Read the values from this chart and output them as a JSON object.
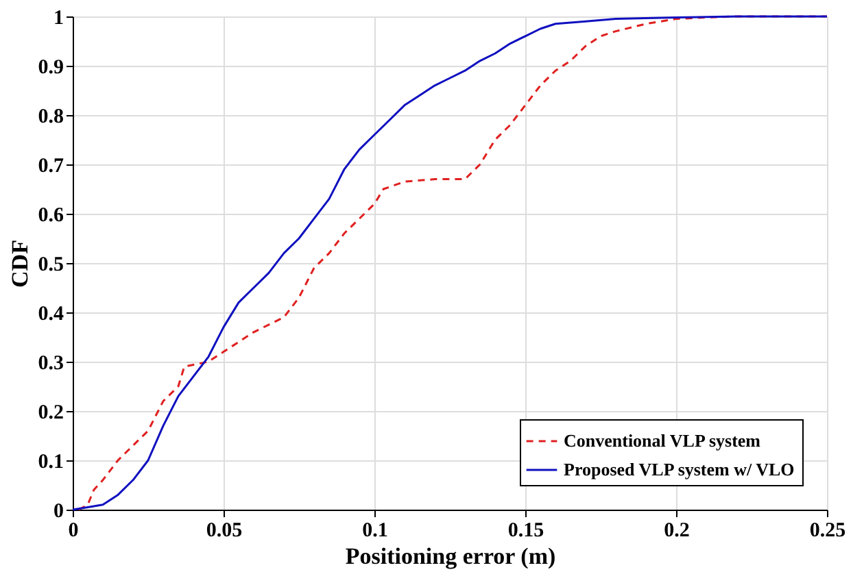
{
  "chart_data": {
    "type": "line",
    "xlabel": "Positioning error (m)",
    "ylabel": "CDF",
    "xlim": [
      0,
      0.25
    ],
    "xticks": [
      0,
      0.05,
      0.1,
      0.15,
      0.2,
      0.25
    ],
    "ylim": [
      0,
      1
    ],
    "yticks": [
      0,
      0.1,
      0.2,
      0.3,
      0.4,
      0.5,
      0.6,
      0.7,
      0.8,
      0.9,
      1
    ],
    "grid": true,
    "legend": "bottom right",
    "marker": "none",
    "series": [
      {
        "name": "Conventional VLP system",
        "color": "#e02020",
        "line_style": "dashed",
        "x": [
          0.002,
          0.005,
          0.007,
          0.01,
          0.015,
          0.02,
          0.025,
          0.03,
          0.035,
          0.037,
          0.045,
          0.05,
          0.06,
          0.07,
          0.075,
          0.08,
          0.085,
          0.09,
          0.095,
          0.1,
          0.103,
          0.11,
          0.12,
          0.13,
          0.135,
          0.14,
          0.145,
          0.15,
          0.155,
          0.16,
          0.165,
          0.17,
          0.175,
          0.18,
          0.19,
          0.2,
          0.21,
          0.22,
          0.25
        ],
        "values": [
          0,
          0.01,
          0.04,
          0.06,
          0.1,
          0.13,
          0.16,
          0.22,
          0.25,
          0.29,
          0.3,
          0.32,
          0.36,
          0.39,
          0.43,
          0.49,
          0.52,
          0.56,
          0.59,
          0.62,
          0.65,
          0.665,
          0.67,
          0.67,
          0.7,
          0.75,
          0.78,
          0.82,
          0.86,
          0.89,
          0.91,
          0.94,
          0.96,
          0.97,
          0.985,
          0.995,
          0.998,
          1,
          1
        ]
      },
      {
        "name": "Proposed VLP system w/ VLO",
        "color": "#1010c0",
        "line_style": "solid",
        "x": [
          0,
          0.005,
          0.01,
          0.015,
          0.02,
          0.025,
          0.03,
          0.035,
          0.04,
          0.045,
          0.05,
          0.055,
          0.06,
          0.065,
          0.07,
          0.075,
          0.08,
          0.085,
          0.09,
          0.095,
          0.1,
          0.105,
          0.11,
          0.115,
          0.12,
          0.125,
          0.13,
          0.135,
          0.14,
          0.145,
          0.15,
          0.155,
          0.16,
          0.17,
          0.18,
          0.2,
          0.22,
          0.25
        ],
        "values": [
          0,
          0.005,
          0.01,
          0.03,
          0.06,
          0.1,
          0.17,
          0.23,
          0.27,
          0.31,
          0.37,
          0.42,
          0.45,
          0.48,
          0.52,
          0.55,
          0.59,
          0.63,
          0.69,
          0.73,
          0.76,
          0.79,
          0.82,
          0.84,
          0.86,
          0.875,
          0.89,
          0.91,
          0.925,
          0.945,
          0.96,
          0.975,
          0.985,
          0.99,
          0.995,
          0.998,
          1,
          1
        ]
      }
    ]
  }
}
